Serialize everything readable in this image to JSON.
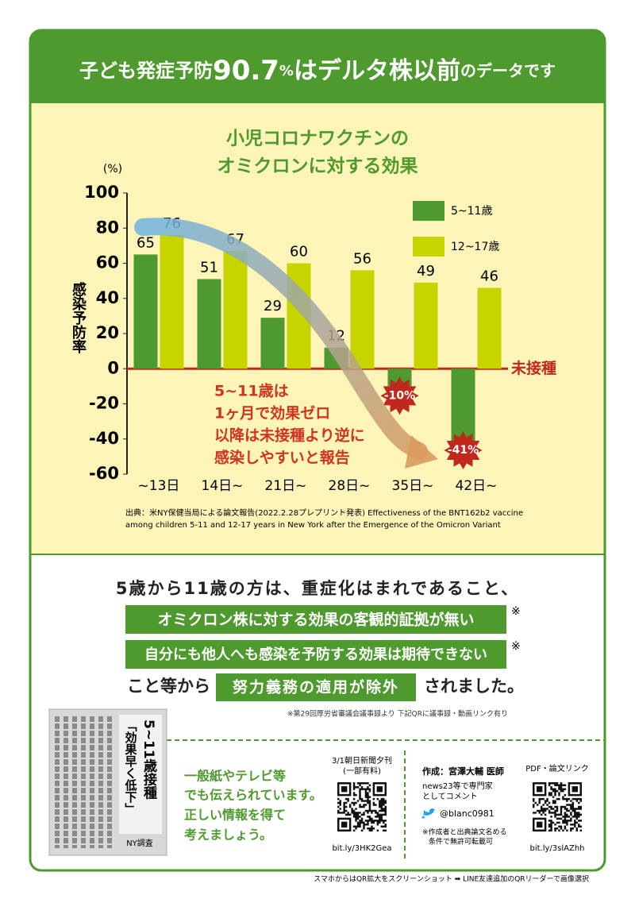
{
  "header": {
    "title_parts": [
      "子ども発症予防",
      "90.7",
      "%",
      "はデルタ株以前",
      "のデータです"
    ]
  },
  "chart_data": {
    "type": "bar",
    "title": [
      "小児コロナワクチンの",
      "オミクロンに対する効果"
    ],
    "y_unit": "(%)",
    "ylabel": "感染予防率",
    "categories": [
      "~13日",
      "14日~",
      "21日~",
      "28日~",
      "35日~",
      "42日~"
    ],
    "series": [
      {
        "name": "5~11歳",
        "color": "#4e9a2e",
        "values": [
          65,
          51,
          29,
          12,
          -10,
          -41
        ],
        "value_labels": [
          "65",
          "51",
          "29",
          "12",
          "-10%",
          "-41%"
        ]
      },
      {
        "name": "12~17歳",
        "color": "#c8d400",
        "values": [
          76,
          67,
          60,
          56,
          49,
          46
        ]
      }
    ],
    "ylim": [
      -60,
      100
    ],
    "yticks": [
      -60,
      -40,
      -20,
      0,
      20,
      40,
      60,
      80,
      100
    ],
    "grid": false,
    "legend": "upper right",
    "baseline_label": "未接種",
    "annotation": [
      "5~11歳は",
      "1ヶ月で効果ゼロ",
      "以降は未接種より逆に",
      "感染しやすいと報告"
    ],
    "source": [
      "出典：米NY保健当局による論文報告(2022.2.28プレプリント発表) Effectiveness of the BNT162b2 vaccine",
      "among children 5-11 and 12-17 years in New York after the Emergence of the Omicron Variant"
    ]
  },
  "message": {
    "intro": "5歳から11歳の方は、重症化はまれであること、",
    "points": [
      {
        "text": "オミクロン株に対する効果の客観的証拠が無い",
        "mark": "※"
      },
      {
        "text": "自分にも他人へも感染を予防する効果は期待できない",
        "mark": "※"
      }
    ],
    "conclusion": {
      "before": "こと等から",
      "highlight": "努力義務の適用が除外",
      "after": "されました。"
    },
    "note": "※第29回厚労省審議会議事録より 下記QRに議事録・動画リンク有り"
  },
  "clipping": {
    "headline": [
      "5~11歳接種",
      "「効果早く低下」"
    ],
    "byline": "NY調査"
  },
  "media": {
    "lines": [
      "一般紙やテレビ等",
      "でも伝えられています。",
      "正しい情報を得て",
      "考えましょう。"
    ]
  },
  "qr_news": {
    "label": [
      "3/1朝日新聞夕刊",
      "(一部有料)"
    ],
    "url": "bit.ly/3HK2Gea"
  },
  "author": {
    "name": "作成：宮澤大輔 医師",
    "bio": [
      "news23等で専門家",
      "としてコメント"
    ],
    "twitter": "@blanc0981",
    "terms": [
      "※作成者と出典論文名める",
      "条件で無許可転載可"
    ]
  },
  "qr_pdf": {
    "label": "PDF・論文リンク",
    "url": "bit.ly/3slAZhh"
  },
  "footer": "スマホからはQR拡大をスクリーンショット ➡ LINE友達追加のQRリーダーで画像選択"
}
